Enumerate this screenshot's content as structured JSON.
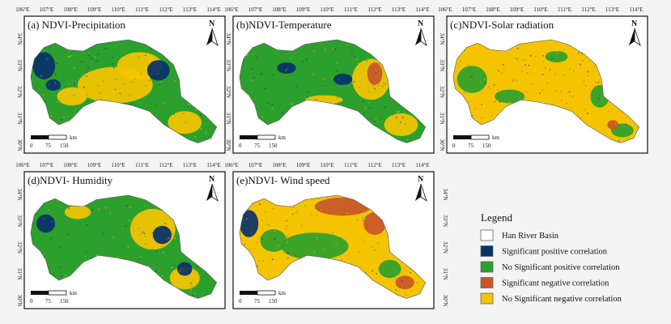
{
  "panels": [
    {
      "title": "(a) NDVI-Precipitation",
      "theme": "precip"
    },
    {
      "title": "(b)NDVI-Temperature",
      "theme": "temp"
    },
    {
      "title": "(c)NDVI-Solar radiation",
      "theme": "solar"
    },
    {
      "title": "(d)NDVI- Humidity",
      "theme": "humid"
    },
    {
      "title": "(e)NDVI- Wind speed",
      "theme": "wind"
    }
  ],
  "longitude_ticks": [
    "106°E",
    "107°E",
    "108°E",
    "109°E",
    "110°E",
    "111°E",
    "112°E",
    "113°E",
    "114°E"
  ],
  "latitude_ticks": [
    "34°N",
    "33°N",
    "32°N",
    "31°N",
    "30°N"
  ],
  "north_arrow_label": "N",
  "scale_bar": {
    "unit": "km",
    "labels": [
      "0",
      "75",
      "150"
    ]
  },
  "legend": {
    "title": "Legend",
    "items": [
      {
        "label": "Han River Basin",
        "color": "#ffffff"
      },
      {
        "label": "Significant positive correlation",
        "color": "#08306b"
      },
      {
        "label": "No Significant positive correlation",
        "color": "#2ca02c"
      },
      {
        "label": "Significant negative correlation",
        "color": "#c8562a"
      },
      {
        "label": "No Significant negative correlation",
        "color": "#f5c400"
      }
    ]
  },
  "colors": {
    "significant_positive": "#08306b",
    "no_significant_positive": "#2ca02c",
    "significant_negative": "#c8562a",
    "no_significant_negative": "#f5c400",
    "frame": "#111111",
    "background": "#f4f4f4"
  }
}
